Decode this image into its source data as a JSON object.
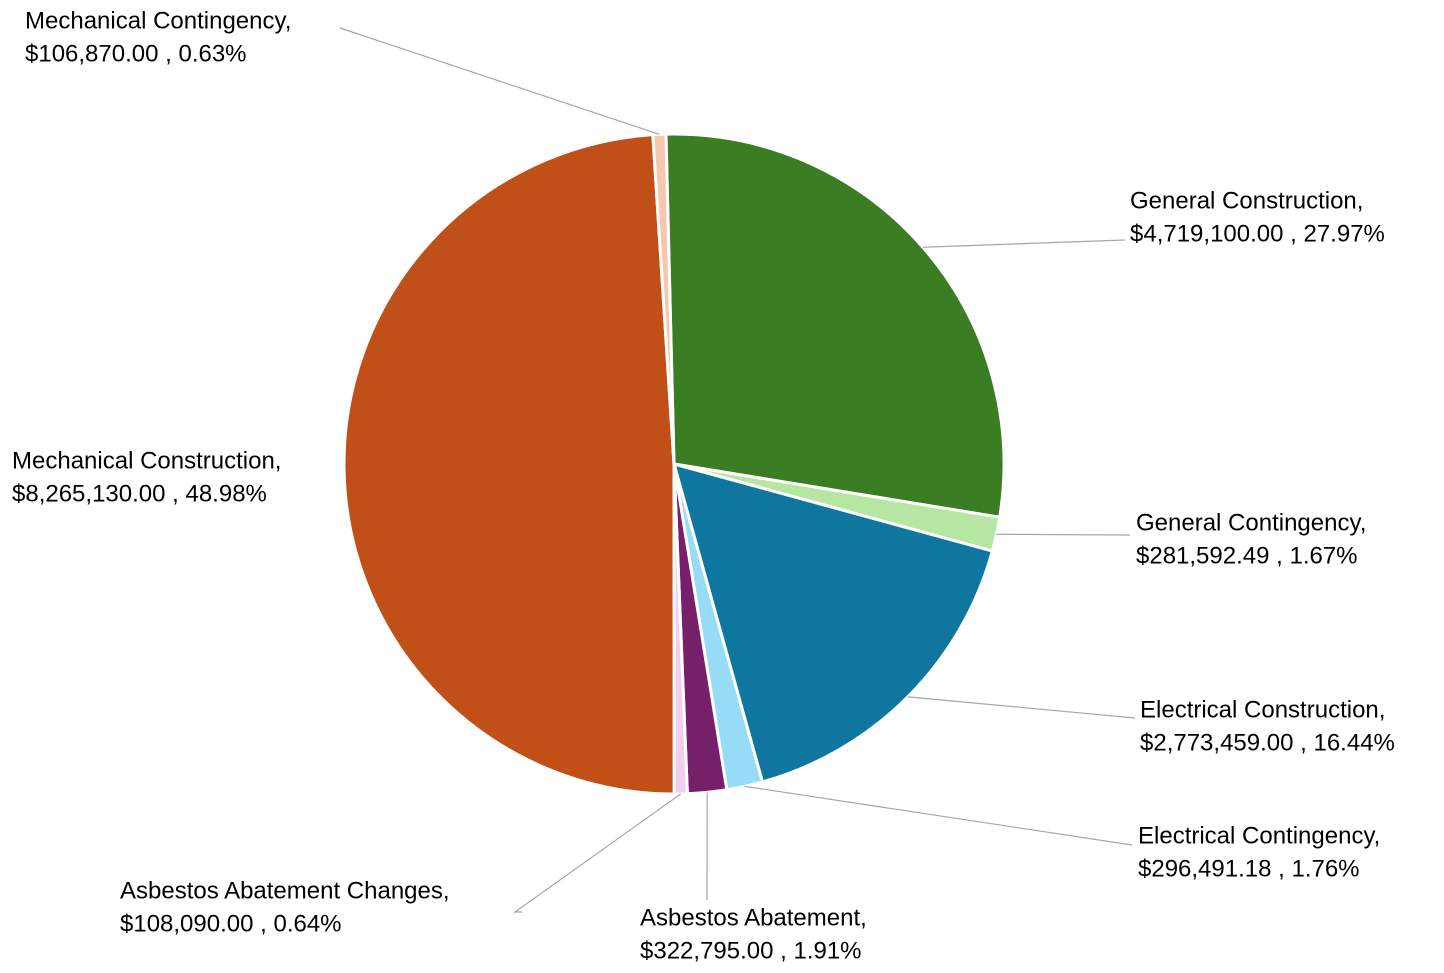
{
  "chart_data": {
    "type": "pie",
    "categories": [
      "General Construction,",
      "General Contingency,",
      "Electrical Construction,",
      "Electrical Contingency,",
      "Asbestos Abatement,",
      "Asbestos Abatement Changes,",
      "Mechanical Construction,",
      "Mechanical Contingency,"
    ],
    "values": [
      4719100.0,
      281592.49,
      2773459.0,
      296491.18,
      322795.0,
      108090.0,
      8265130.0,
      106870.0
    ],
    "value_labels": [
      "$4,719,100.00 , 27.97%",
      "$281,592.49 , 1.67%",
      "$2,773,459.00 , 16.44%",
      "$296,491.18 , 1.76%",
      "$322,795.00 , 1.91%",
      "$108,090.00 , 0.64%",
      "$8,265,130.00 , 48.98%",
      "$106,870.00 , 0.63%"
    ],
    "colors": [
      "#3b7d23",
      "#b5e6a2",
      "#0e769f",
      "#97dcf6",
      "#752068",
      "#f2cfee",
      "#c05017",
      "#f6c6ad"
    ]
  }
}
